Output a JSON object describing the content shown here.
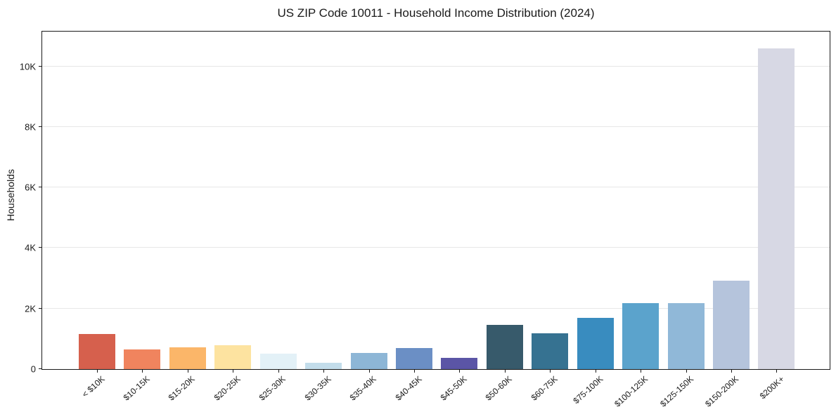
{
  "chart_data": {
    "type": "bar",
    "title": "US ZIP Code 10011 - Household Income Distribution (2024)",
    "xlabel": "",
    "ylabel": "Households",
    "categories": [
      "< $10K",
      "$10-15K",
      "$15-20K",
      "$20-25K",
      "$25-30K",
      "$30-35K",
      "$35-40K",
      "$40-45K",
      "$45-50K",
      "$50-60K",
      "$60-75K",
      "$75-100K",
      "$100-125K",
      "$125-150K",
      "$150-200K",
      "$200K+"
    ],
    "values": [
      1160,
      640,
      730,
      785,
      500,
      205,
      540,
      700,
      375,
      1465,
      1185,
      1700,
      2190,
      2180,
      2910,
      10600
    ],
    "bar_colors": [
      "#d6604d",
      "#f0845e",
      "#fbb669",
      "#fde3a0",
      "#e3f1f7",
      "#c3ddeb",
      "#8db6d6",
      "#6b8fc5",
      "#5b55a6",
      "#375a6b",
      "#367291",
      "#398cbf",
      "#5ba3cc",
      "#90b8d8",
      "#b5c4dc",
      "#d7d8e4"
    ],
    "ylim": [
      0,
      11150
    ],
    "y_ticks": [
      {
        "value": 0,
        "label": "0"
      },
      {
        "value": 2000,
        "label": "2K"
      },
      {
        "value": 4000,
        "label": "4K"
      },
      {
        "value": 6000,
        "label": "6K"
      },
      {
        "value": 8000,
        "label": "8K"
      },
      {
        "value": 10000,
        "label": "10K"
      }
    ],
    "grid": "horizontal",
    "legend": "none"
  },
  "colors": {
    "background": "#ffffff",
    "text": "#1a1a1a",
    "grid": "#e7e7e7",
    "spine": "#1a1a1a"
  }
}
